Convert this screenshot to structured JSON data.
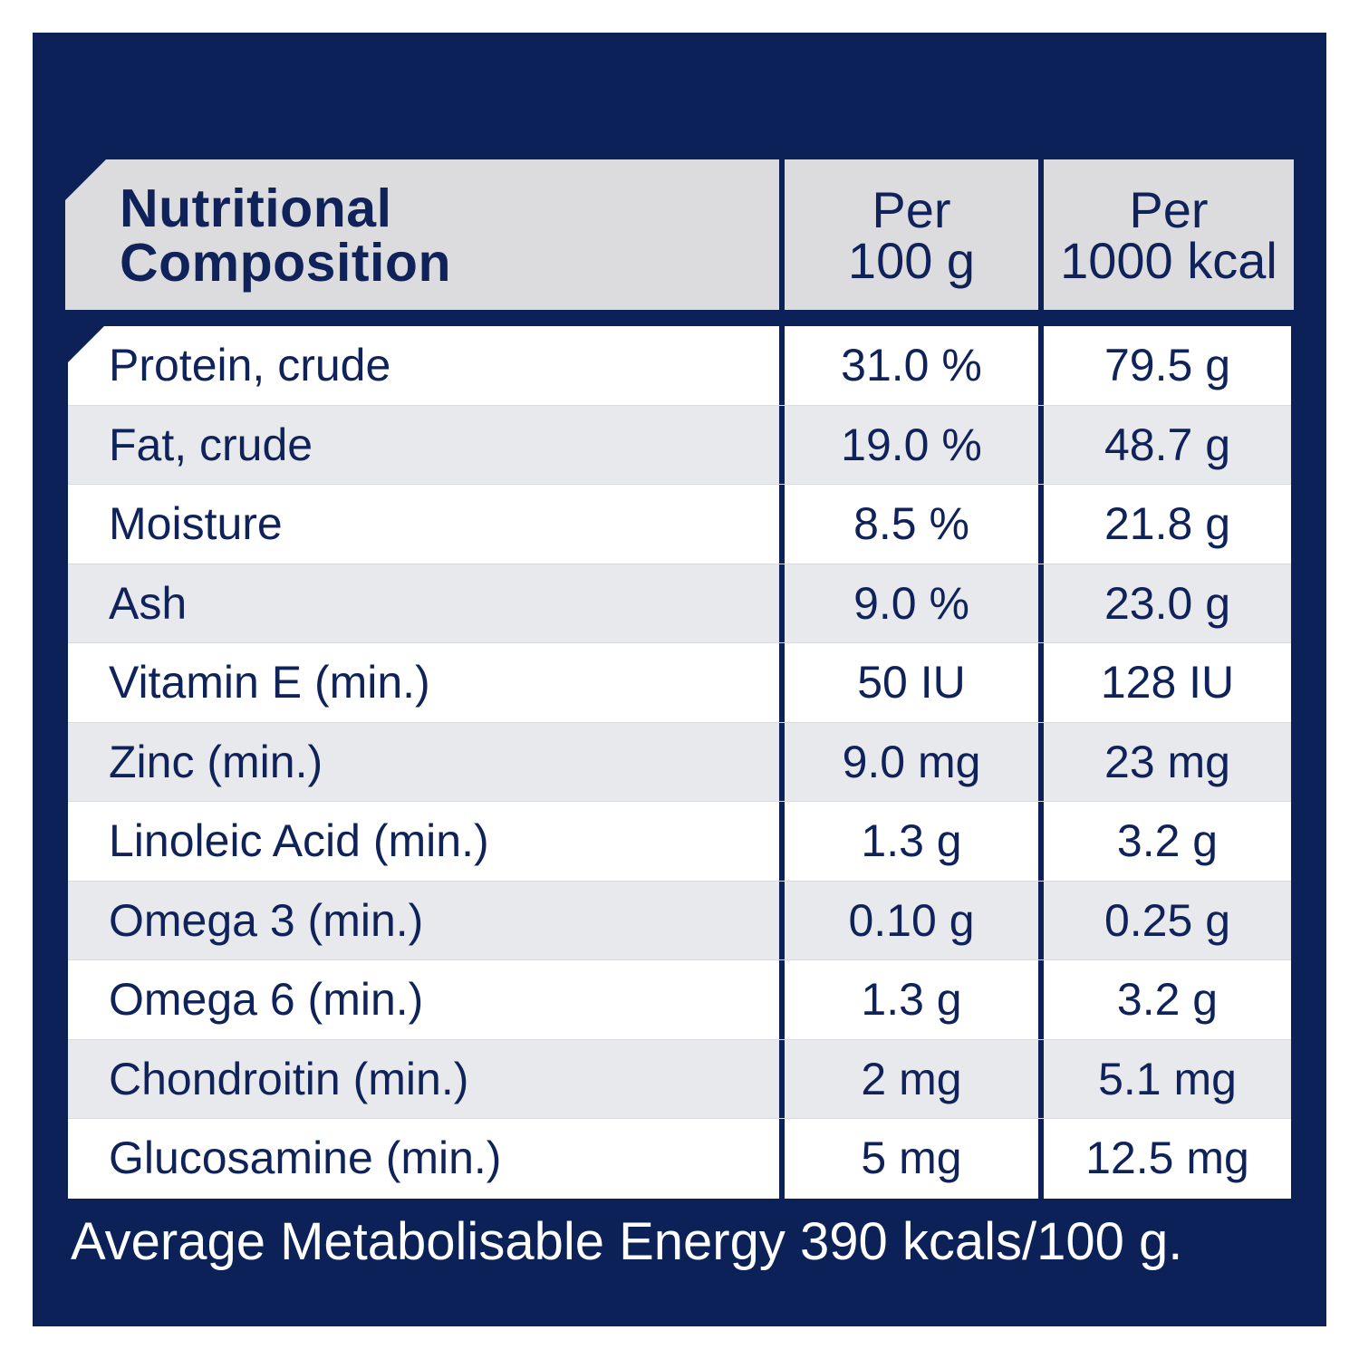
{
  "colors": {
    "navy": "#0b2158",
    "header_gray": "#dcdcdf",
    "row_alt": "#e8e9ed"
  },
  "header": {
    "title_line1": "Nutritional",
    "title_line2": "Composition",
    "col1_line1": "Per",
    "col1_line2": "100 g",
    "col2_line1": "Per",
    "col2_line2": "1000 kcal"
  },
  "rows": [
    {
      "name": "Protein, crude",
      "per100g": "31.0 %",
      "per1000kcal": "79.5 g"
    },
    {
      "name": "Fat, crude",
      "per100g": "19.0 %",
      "per1000kcal": "48.7 g"
    },
    {
      "name": "Moisture",
      "per100g": "8.5 %",
      "per1000kcal": "21.8 g"
    },
    {
      "name": "Ash",
      "per100g": "9.0 %",
      "per1000kcal": "23.0 g"
    },
    {
      "name": "Vitamin E (min.)",
      "per100g": "50 IU",
      "per1000kcal": "128 IU"
    },
    {
      "name": "Zinc (min.)",
      "per100g": "9.0 mg",
      "per1000kcal": "23 mg"
    },
    {
      "name": "Linoleic Acid (min.)",
      "per100g": "1.3 g",
      "per1000kcal": "3.2 g"
    },
    {
      "name": "Omega 3 (min.)",
      "per100g": "0.10 g",
      "per1000kcal": "0.25 g"
    },
    {
      "name": "Omega 6 (min.)",
      "per100g": "1.3 g",
      "per1000kcal": "3.2 g"
    },
    {
      "name": "Chondroitin (min.)",
      "per100g": "2 mg",
      "per1000kcal": "5.1 mg"
    },
    {
      "name": "Glucosamine (min.)",
      "per100g": "5 mg",
      "per1000kcal": "12.5 mg"
    }
  ],
  "footer": "Average Metabolisable Energy 390 kcals/100 g."
}
